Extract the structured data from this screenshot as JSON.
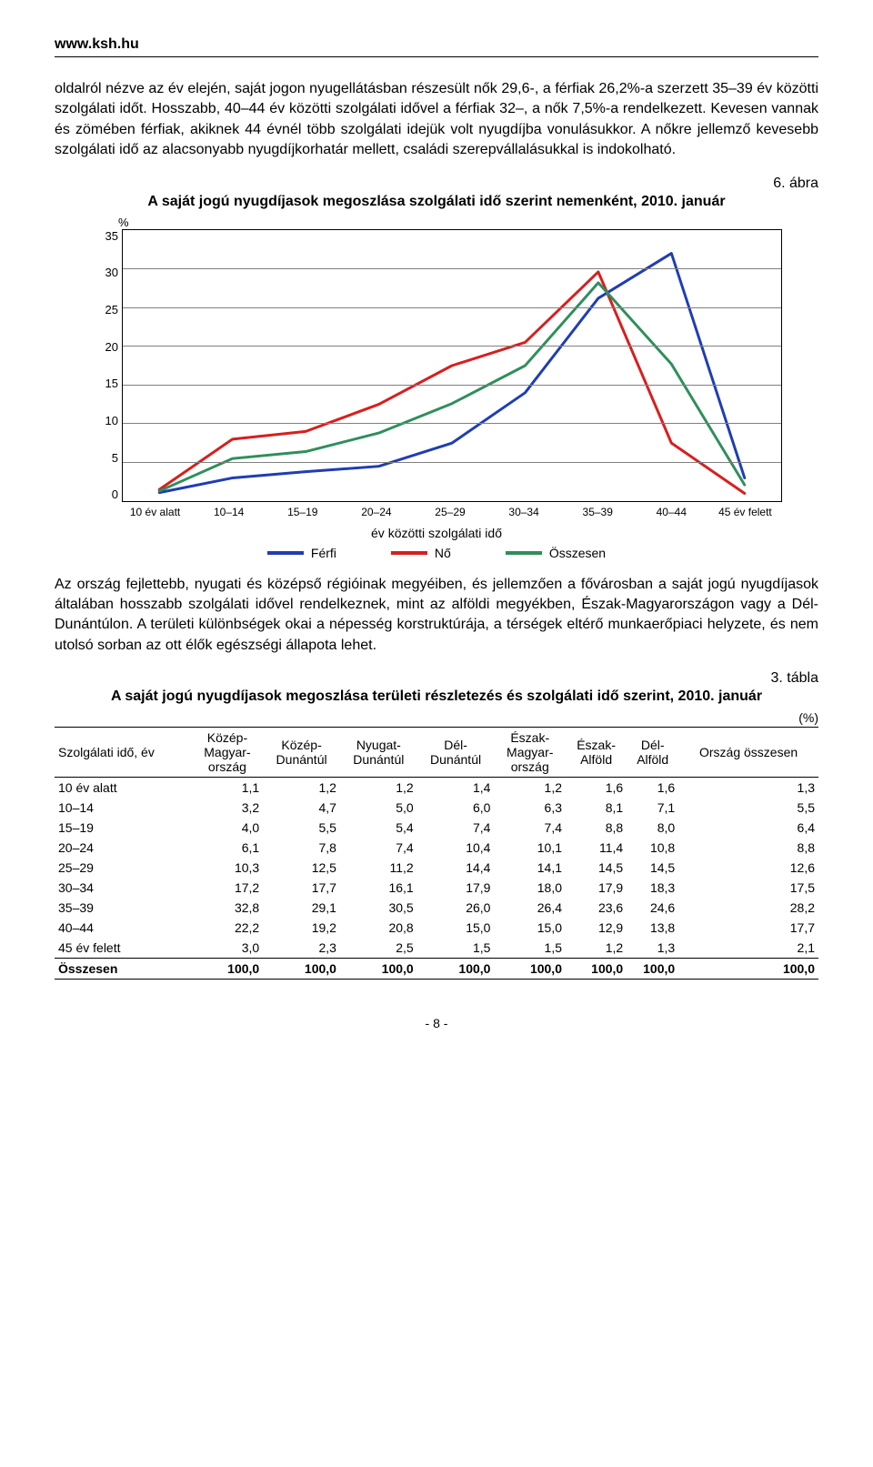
{
  "header": {
    "url": "www.ksh.hu"
  },
  "paragraph1": "oldalról nézve az év elején, saját jogon nyugellátásban részesült nők 29,6-, a férfiak 26,2%-a szerzett 35–39 év közötti szolgálati időt. Hosszabb, 40–44 év közötti szolgálati idővel a férfiak 32–, a nők 7,5%-a rendelkezett. Kevesen vannak és zömében férfiak, akiknek 44 évnél több szolgálati idejük volt nyugdíjba vonulásukkor. A nőkre jellemző kevesebb szolgálati idő az alacsonyabb nyugdíjkorhatár mellett, családi szerepvállalásukkal is indokolható.",
  "figure": {
    "label": "6. ábra",
    "title": "A saját jogú nyugdíjasok megoszlása szolgálati idő szerint nemenként, 2010. január",
    "y_unit": "%",
    "y_ticks": [
      "35",
      "30",
      "25",
      "20",
      "15",
      "10",
      "5",
      "0"
    ],
    "ylim": [
      0,
      35
    ],
    "x_ticks": [
      "10 év alatt",
      "10–14",
      "15–19",
      "20–24",
      "25–29",
      "30–34",
      "35–39",
      "40–44",
      "45 év felett"
    ],
    "x_label": "év közötti szolgálati idő",
    "grid_color": "#808080",
    "border_color": "#000000",
    "background_color": "#ffffff",
    "line_width": 3,
    "series": [
      {
        "name": "Férfi",
        "color": "#1f3db3",
        "values": [
          1.1,
          3.0,
          3.8,
          4.5,
          7.5,
          14.0,
          26.2,
          32.0,
          3.0
        ]
      },
      {
        "name": "Nő",
        "color": "#d81e1e",
        "values": [
          1.5,
          8.0,
          9.0,
          12.5,
          17.5,
          20.5,
          29.6,
          7.5,
          1.0
        ]
      },
      {
        "name": "Összesen",
        "color": "#2f8f5c",
        "values": [
          1.3,
          5.5,
          6.4,
          8.8,
          12.6,
          17.5,
          28.2,
          17.7,
          2.1
        ]
      }
    ],
    "legend": [
      "Férfi",
      "Nő",
      "Összesen"
    ]
  },
  "paragraph2": "Az ország fejlettebb, nyugati és középső régióinak megyéiben, és jellemzően a fővárosban a saját jogú nyugdíjasok általában hosszabb szolgálati idővel rendelkeznek, mint az alföldi megyékben, Észak-Magyarországon vagy a Dél-Dunántúlon. A területi különbségek okai a népesség korstruktúrája, a térségek eltérő munkaerőpiaci helyzete, és nem utolsó sorban az ott élők egészségi állapota lehet.",
  "table": {
    "label": "3. tábla",
    "title": "A saját jogú nyugdíjasok megoszlása területi részletezés és szolgálati idő szerint, 2010. január",
    "unit": "(%)",
    "columns": [
      "Szolgálati idő, év",
      "Közép-Magyar-ország",
      "Közép-Dunántúl",
      "Nyugat-Dunántúl",
      "Dél-Dunántúl",
      "Észak-Magyar-ország",
      "Észak-Alföld",
      "Dél-Alföld",
      "Ország összesen"
    ],
    "rows": [
      [
        "10 év alatt",
        "1,1",
        "1,2",
        "1,2",
        "1,4",
        "1,2",
        "1,6",
        "1,6",
        "1,3"
      ],
      [
        "10–14",
        "3,2",
        "4,7",
        "5,0",
        "6,0",
        "6,3",
        "8,1",
        "7,1",
        "5,5"
      ],
      [
        "15–19",
        "4,0",
        "5,5",
        "5,4",
        "7,4",
        "7,4",
        "8,8",
        "8,0",
        "6,4"
      ],
      [
        "20–24",
        "6,1",
        "7,8",
        "7,4",
        "10,4",
        "10,1",
        "11,4",
        "10,8",
        "8,8"
      ],
      [
        "25–29",
        "10,3",
        "12,5",
        "11,2",
        "14,4",
        "14,1",
        "14,5",
        "14,5",
        "12,6"
      ],
      [
        "30–34",
        "17,2",
        "17,7",
        "16,1",
        "17,9",
        "18,0",
        "17,9",
        "18,3",
        "17,5"
      ],
      [
        "35–39",
        "32,8",
        "29,1",
        "30,5",
        "26,0",
        "26,4",
        "23,6",
        "24,6",
        "28,2"
      ],
      [
        "40–44",
        "22,2",
        "19,2",
        "20,8",
        "15,0",
        "15,0",
        "12,9",
        "13,8",
        "17,7"
      ],
      [
        "45 év felett",
        "3,0",
        "2,3",
        "2,5",
        "1,5",
        "1,5",
        "1,2",
        "1,3",
        "2,1"
      ]
    ],
    "total_row": [
      "Összesen",
      "100,0",
      "100,0",
      "100,0",
      "100,0",
      "100,0",
      "100,0",
      "100,0",
      "100,0"
    ]
  },
  "page_number": "- 8 -"
}
